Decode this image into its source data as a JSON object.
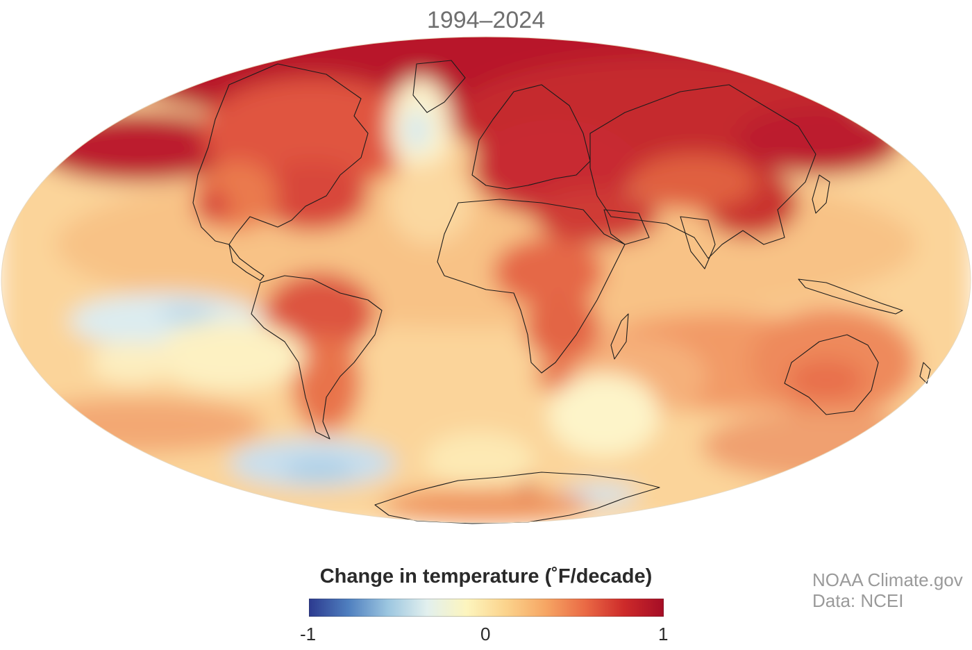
{
  "title": "1994–2024",
  "legend": {
    "title": "Change in temperature (˚F/decade)",
    "min_label": "-1",
    "mid_label": "0",
    "max_label": "1",
    "colors": [
      "#2c3a8f",
      "#4f7fbf",
      "#9cc6e0",
      "#e2f0ee",
      "#fdf5be",
      "#fbd38c",
      "#f6a664",
      "#ea6a45",
      "#cd2a2a",
      "#a50d26"
    ]
  },
  "credits": {
    "line1": "NOAA Climate.gov",
    "line2": "Data: NCEI"
  },
  "map": {
    "projection": "hammer",
    "value_range": [
      -1,
      1
    ]
  }
}
